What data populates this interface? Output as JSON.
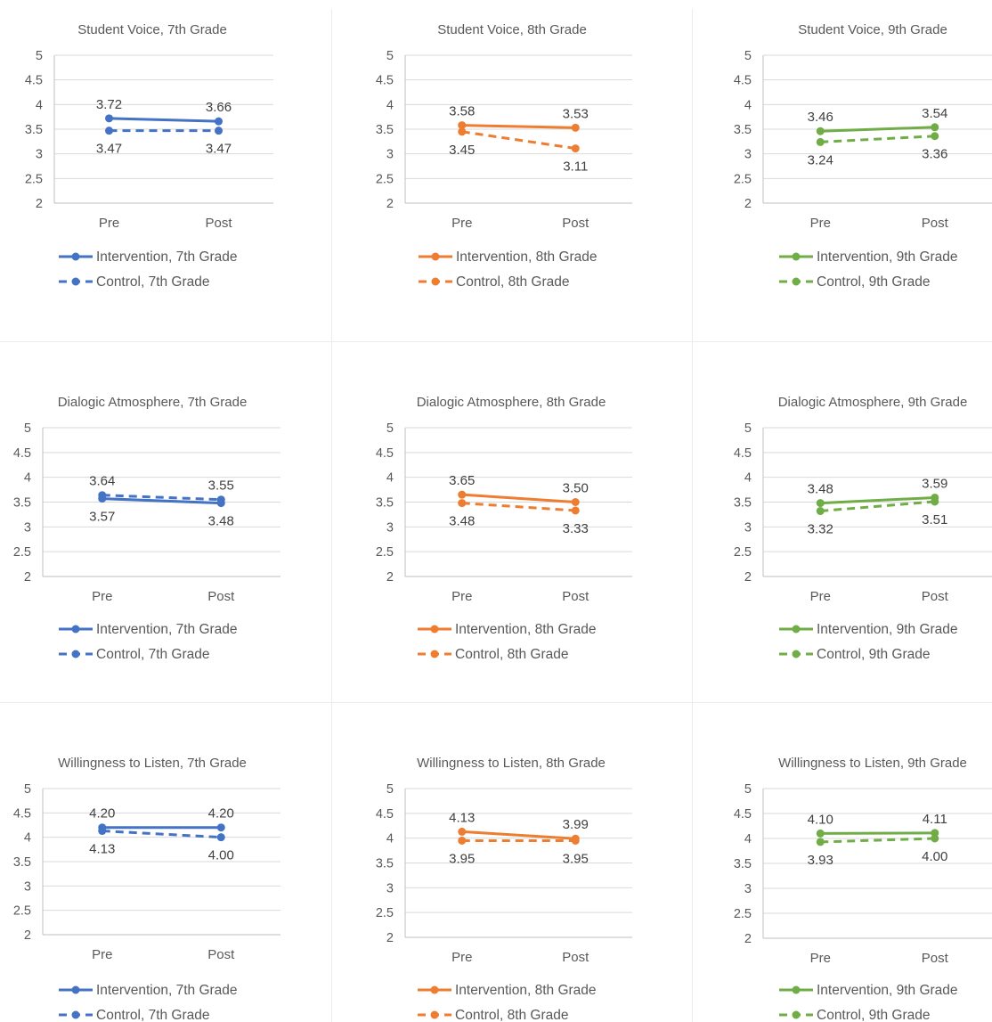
{
  "chart_data": [
    {
      "type": "line",
      "title": "Student Voice, 7th Grade",
      "categories": [
        "Pre",
        "Post"
      ],
      "ylim": [
        2,
        5
      ],
      "yticks": [
        "5",
        "4.5",
        "4",
        "3.5",
        "3",
        "2.5",
        "2"
      ],
      "color": "#4472c4",
      "series": [
        {
          "name": "Intervention, 7th Grade",
          "values": [
            3.72,
            3.66
          ],
          "labels": [
            "3.72",
            "3.66"
          ],
          "dashed": false
        },
        {
          "name": "Control, 7th Grade",
          "values": [
            3.47,
            3.47
          ],
          "labels": [
            "3.47",
            "3.47"
          ],
          "dashed": true
        }
      ]
    },
    {
      "type": "line",
      "title": "Student Voice, 8th Grade",
      "categories": [
        "Pre",
        "Post"
      ],
      "ylim": [
        2,
        5
      ],
      "yticks": [
        "5",
        "4.5",
        "4",
        "3.5",
        "3",
        "2.5",
        "2"
      ],
      "color": "#ed7d31",
      "series": [
        {
          "name": "Intervention, 8th Grade",
          "values": [
            3.58,
            3.53
          ],
          "labels": [
            "3.58",
            "3.53"
          ],
          "dashed": false
        },
        {
          "name": "Control, 8th Grade",
          "values": [
            3.45,
            3.11
          ],
          "labels": [
            "3.45",
            "3.11"
          ],
          "dashed": true
        }
      ]
    },
    {
      "type": "line",
      "title": "Student Voice, 9th Grade",
      "categories": [
        "Pre",
        "Post"
      ],
      "ylim": [
        2,
        5
      ],
      "yticks": [
        "5",
        "4.5",
        "4",
        "3.5",
        "3",
        "2.5",
        "2"
      ],
      "color": "#70ad47",
      "series": [
        {
          "name": "Intervention, 9th Grade",
          "values": [
            3.46,
            3.54
          ],
          "labels": [
            "3.46",
            "3.54"
          ],
          "dashed": false
        },
        {
          "name": "Control, 9th Grade",
          "values": [
            3.24,
            3.36
          ],
          "labels": [
            "3.24",
            "3.36"
          ],
          "dashed": true
        }
      ]
    },
    {
      "type": "line",
      "title": "Dialogic Atmosphere, 7th Grade",
      "categories": [
        "Pre",
        "Post"
      ],
      "ylim": [
        2,
        5
      ],
      "yticks": [
        "5",
        "4.5",
        "4",
        "3.5",
        "3",
        "2.5",
        "2"
      ],
      "color": "#4472c4",
      "series": [
        {
          "name": "Intervention, 7th Grade",
          "values": [
            3.57,
            3.48
          ],
          "labels": [
            "3.57",
            "3.48"
          ],
          "dashed": false
        },
        {
          "name": "Control, 7th Grade",
          "values": [
            3.64,
            3.55
          ],
          "labels": [
            "3.64",
            "3.55"
          ],
          "dashed": true
        }
      ]
    },
    {
      "type": "line",
      "title": "Dialogic Atmosphere, 8th Grade",
      "categories": [
        "Pre",
        "Post"
      ],
      "ylim": [
        2,
        5
      ],
      "yticks": [
        "5",
        "4.5",
        "4",
        "3.5",
        "3",
        "2.5",
        "2"
      ],
      "color": "#ed7d31",
      "series": [
        {
          "name": "Intervention, 8th Grade",
          "values": [
            3.65,
            3.5
          ],
          "labels": [
            "3.65",
            "3.50"
          ],
          "dashed": false
        },
        {
          "name": "Control, 8th Grade",
          "values": [
            3.48,
            3.33
          ],
          "labels": [
            "3.48",
            "3.33"
          ],
          "dashed": true
        }
      ]
    },
    {
      "type": "line",
      "title": "Dialogic Atmosphere, 9th Grade",
      "categories": [
        "Pre",
        "Post"
      ],
      "ylim": [
        2,
        5
      ],
      "yticks": [
        "5",
        "4.5",
        "4",
        "3.5",
        "3",
        "2.5",
        "2"
      ],
      "color": "#70ad47",
      "series": [
        {
          "name": "Intervention, 9th Grade",
          "values": [
            3.48,
            3.59
          ],
          "labels": [
            "3.48",
            "3.59"
          ],
          "dashed": false
        },
        {
          "name": "Control, 9th Grade",
          "values": [
            3.32,
            3.51
          ],
          "labels": [
            "3.32",
            "3.51"
          ],
          "dashed": true
        }
      ]
    },
    {
      "type": "line",
      "title": "Willingness to Listen, 7th Grade",
      "categories": [
        "Pre",
        "Post"
      ],
      "ylim": [
        2,
        5
      ],
      "yticks": [
        "5",
        "4.5",
        "4",
        "3.5",
        "3",
        "2.5",
        "2"
      ],
      "color": "#4472c4",
      "series": [
        {
          "name": "Intervention, 7th Grade",
          "values": [
            4.2,
            4.2
          ],
          "labels": [
            "4.20",
            "4.20"
          ],
          "dashed": false
        },
        {
          "name": "Control, 7th Grade",
          "values": [
            4.13,
            4.0
          ],
          "labels": [
            "4.13",
            "4.00"
          ],
          "dashed": true
        }
      ]
    },
    {
      "type": "line",
      "title": "Willingness to Listen, 8th Grade",
      "categories": [
        "Pre",
        "Post"
      ],
      "ylim": [
        2,
        5
      ],
      "yticks": [
        "5",
        "4.5",
        "4",
        "3.5",
        "3",
        "2.5",
        "2"
      ],
      "color": "#ed7d31",
      "series": [
        {
          "name": "Intervention, 8th Grade",
          "values": [
            4.13,
            3.99
          ],
          "labels": [
            "4.13",
            "3.99"
          ],
          "dashed": false
        },
        {
          "name": "Control, 8th Grade",
          "values": [
            3.95,
            3.95
          ],
          "labels": [
            "3.95",
            "3.95"
          ],
          "dashed": true
        }
      ]
    },
    {
      "type": "line",
      "title": "Willingness to Listen, 9th Grade",
      "categories": [
        "Pre",
        "Post"
      ],
      "ylim": [
        2,
        5
      ],
      "yticks": [
        "5",
        "4.5",
        "4",
        "3.5",
        "3",
        "2.5",
        "2"
      ],
      "color": "#70ad47",
      "series": [
        {
          "name": "Intervention, 9th Grade",
          "values": [
            4.1,
            4.11
          ],
          "labels": [
            "4.10",
            "4.11"
          ],
          "dashed": false
        },
        {
          "name": "Control, 9th Grade",
          "values": [
            3.93,
            4.0
          ],
          "labels": [
            "3.93",
            "4.00"
          ],
          "dashed": true
        }
      ]
    }
  ]
}
